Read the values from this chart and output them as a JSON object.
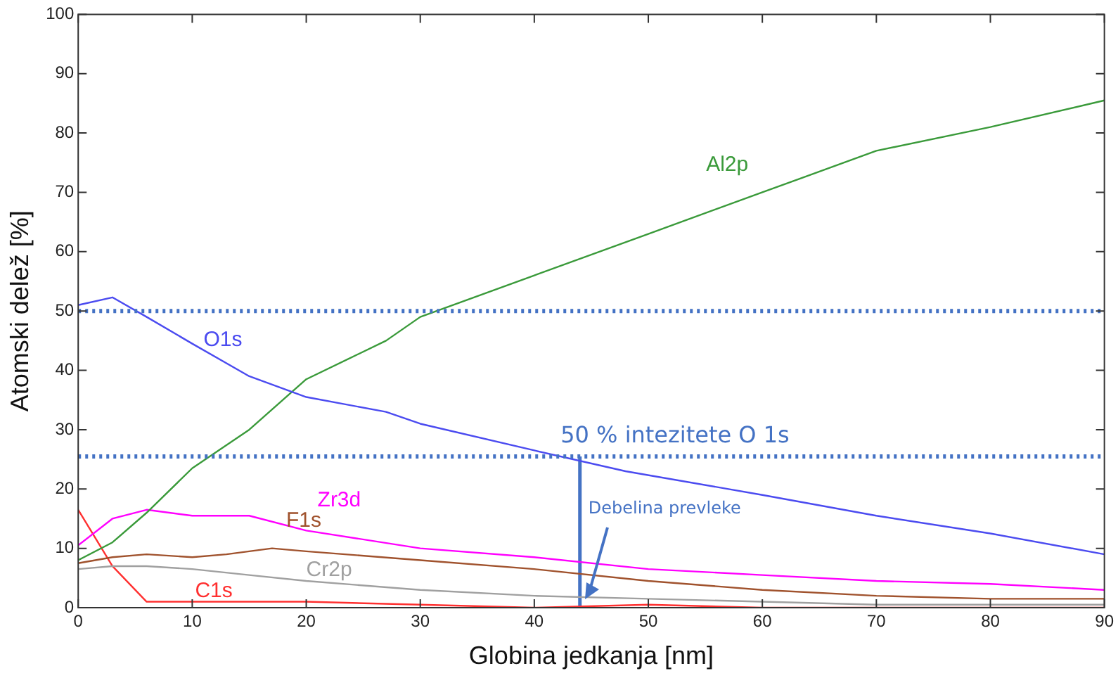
{
  "chart_data": {
    "type": "line",
    "xlabel": "Globina jedkanja [nm]",
    "ylabel": "Atomski delež [%]",
    "xlim": [
      0,
      90
    ],
    "xticks": [
      0,
      10,
      20,
      30,
      40,
      50,
      60,
      70,
      80,
      90
    ],
    "ylim": [
      0,
      100
    ],
    "yticks": [
      0,
      10,
      20,
      30,
      40,
      50,
      60,
      70,
      80,
      90,
      100
    ],
    "grid": false,
    "legend": false,
    "marker": "none",
    "line_style": "solid",
    "series": [
      {
        "name": "O1s",
        "color": "#4b4bf0",
        "x": [
          0,
          3,
          6,
          10,
          15,
          20,
          27,
          30,
          40,
          48,
          60,
          70,
          80,
          90
        ],
        "values": [
          51,
          52.3,
          49,
          44.5,
          39,
          35.5,
          33,
          31,
          26.5,
          23,
          19,
          15.5,
          12.5,
          9
        ]
      },
      {
        "name": "Al2p",
        "color": "#3a9a3a",
        "x": [
          0,
          3,
          6,
          10,
          15,
          20,
          27,
          30,
          40,
          50,
          60,
          70,
          80,
          90
        ],
        "values": [
          8,
          11,
          16,
          23.5,
          30,
          38.5,
          45,
          49,
          56,
          63,
          70,
          77,
          81,
          85.5
        ]
      },
      {
        "name": "Zr3d",
        "color": "#ff00ff",
        "x": [
          0,
          3,
          6,
          10,
          15,
          20,
          30,
          40,
          50,
          60,
          70,
          80,
          90
        ],
        "values": [
          10.5,
          15,
          16.5,
          15.5,
          15.5,
          13,
          10,
          8.5,
          6.5,
          5.5,
          4.5,
          4,
          3
        ]
      },
      {
        "name": "F1s",
        "color": "#a0522d",
        "x": [
          0,
          3,
          6,
          10,
          13,
          17,
          20,
          30,
          40,
          50,
          60,
          70,
          80,
          90
        ],
        "values": [
          7.5,
          8.5,
          9,
          8.5,
          9,
          10,
          9.5,
          8,
          6.5,
          4.5,
          3,
          2,
          1.5,
          1.5
        ]
      },
      {
        "name": "Cr2p",
        "color": "#a0a0a0",
        "x": [
          0,
          3,
          6,
          10,
          15,
          20,
          30,
          40,
          50,
          60,
          70,
          90
        ],
        "values": [
          6.5,
          7,
          7,
          6.5,
          5.5,
          4.5,
          3,
          2,
          1.5,
          1,
          0.5,
          0.5
        ]
      },
      {
        "name": "C1s",
        "color": "#ff3030",
        "x": [
          0,
          3,
          6,
          10,
          20,
          30,
          40,
          50,
          60,
          90
        ],
        "values": [
          16.5,
          7,
          1,
          1,
          1,
          0.5,
          0,
          0.5,
          0,
          0
        ]
      },
      {
        "color": "#4472c4",
        "x": [
          44,
          44
        ],
        "values": [
          0,
          25.5
        ]
      }
    ],
    "ref_lines": [
      {
        "axis": "y",
        "value": 50,
        "color": "#4472c4",
        "line_style": "dotted"
      },
      {
        "axis": "y",
        "value": 25.5,
        "label": "50 % intezitete O 1s",
        "color": "#4472c4",
        "line_style": "dotted"
      }
    ],
    "annotations": [
      {
        "text": "Debelina prevleke",
        "x": 44.5,
        "y": 1.5
      }
    ]
  }
}
